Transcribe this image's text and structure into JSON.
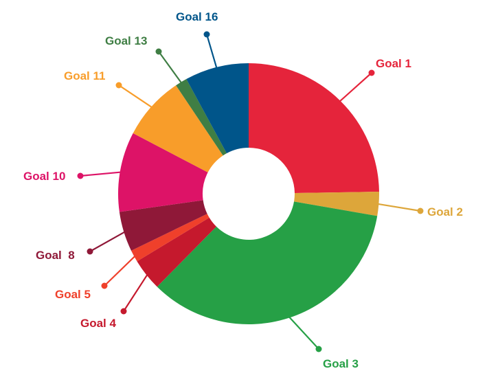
{
  "chart_data": {
    "type": "pie",
    "title": "",
    "slices": [
      {
        "label": "Goal 1",
        "value": 25,
        "color": "#E5243B"
      },
      {
        "label": "Goal 2",
        "value": 3,
        "color": "#DDA63A"
      },
      {
        "label": "Goal 3",
        "value": 35,
        "color": "#26A046"
      },
      {
        "label": "Goal 4",
        "value": 4,
        "color": "#C5192D"
      },
      {
        "label": "Goal 5",
        "value": 1.5,
        "color": "#EF402B"
      },
      {
        "label": "Goal  8",
        "value": 5,
        "color": "#8F1838"
      },
      {
        "label": "Goal 10",
        "value": 10,
        "color": "#DD1367"
      },
      {
        "label": "Goal 11",
        "value": 8,
        "color": "#F89D2A"
      },
      {
        "label": "Goal 13",
        "value": 1.5,
        "color": "#3F7E44"
      },
      {
        "label": "Goal 16",
        "value": 8,
        "color": "#00558A"
      }
    ]
  }
}
